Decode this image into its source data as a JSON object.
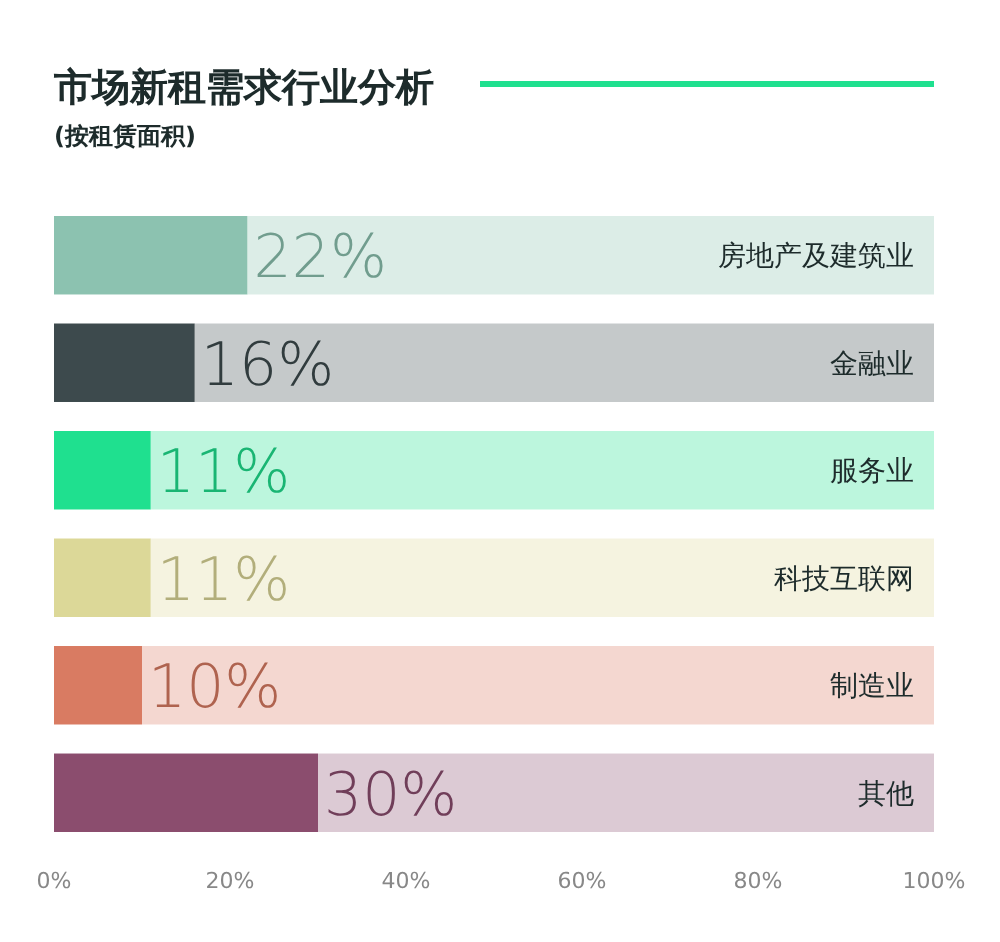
{
  "chart_data": {
    "type": "bar",
    "orientation": "horizontal",
    "stacked": true,
    "title": "市场新租需求行业分析",
    "subtitle": "(按租赁面积)",
    "categories": [
      "房地产及建筑业",
      "金融业",
      "服务业",
      "科技互联网",
      "制造业",
      "其他"
    ],
    "series": [
      {
        "values": [
          22,
          16,
          11,
          11,
          10,
          30
        ],
        "colors": [
          "#8cc2b0",
          "#3d4a4d",
          "#1fe08f",
          "#dcd898",
          "#d97b62",
          "#8b4d6e"
        ],
        "value_labels": [
          "22%",
          "16%",
          "11%",
          "11%",
          "10%",
          "30%"
        ]
      },
      {
        "values": [
          78,
          84,
          89,
          89,
          90,
          70
        ],
        "colors": [
          "#dcede7",
          "#c5c9ca",
          "#bcf6dd",
          "#f5f3e0",
          "#f4d7d0",
          "#dccad4"
        ]
      }
    ],
    "xlim": [
      0,
      100
    ],
    "xticks": [
      {
        "value": 0,
        "label": "0%"
      },
      {
        "value": 20,
        "label": "20%"
      },
      {
        "value": 40,
        "label": "40%"
      },
      {
        "value": 60,
        "label": "60%"
      },
      {
        "value": 80,
        "label": "80%"
      },
      {
        "value": 100,
        "label": "100%"
      }
    ]
  }
}
